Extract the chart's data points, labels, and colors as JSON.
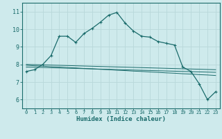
{
  "xlabel": "Humidex (Indice chaleur)",
  "background_color": "#ceeaec",
  "grid_color": "#b8d8da",
  "line_color": "#1a6b6b",
  "xlim": [
    -0.5,
    23.5
  ],
  "ylim": [
    5.5,
    11.5
  ],
  "xticks": [
    0,
    1,
    2,
    3,
    4,
    5,
    6,
    7,
    8,
    9,
    10,
    11,
    12,
    13,
    14,
    15,
    16,
    17,
    18,
    19,
    20,
    21,
    22,
    23
  ],
  "yticks": [
    6,
    7,
    8,
    9,
    10,
    11
  ],
  "curve1_x": [
    0,
    1,
    2,
    3,
    4,
    5,
    6,
    7,
    8,
    9,
    10,
    11,
    12,
    13,
    14,
    15,
    16,
    17,
    18,
    19,
    20,
    21,
    22,
    23
  ],
  "curve1_y": [
    7.6,
    7.7,
    8.0,
    8.5,
    9.6,
    9.6,
    9.25,
    9.75,
    10.05,
    10.4,
    10.8,
    10.95,
    10.35,
    9.9,
    9.6,
    9.55,
    9.3,
    9.2,
    9.1,
    7.85,
    7.6,
    6.9,
    6.0,
    6.45
  ],
  "curve2_x": [
    0,
    1,
    2,
    3,
    4,
    5,
    6,
    7,
    8,
    9,
    10,
    11,
    12,
    13,
    14,
    15,
    16,
    17,
    18,
    19,
    20,
    21,
    22,
    23
  ],
  "curve2_y": [
    7.95,
    7.92,
    7.9,
    7.87,
    7.85,
    7.82,
    7.8,
    7.77,
    7.75,
    7.72,
    7.7,
    7.67,
    7.65,
    7.62,
    7.6,
    7.57,
    7.55,
    7.52,
    7.5,
    7.47,
    7.45,
    7.42,
    7.4,
    7.37
  ],
  "curve3_x": [
    0,
    23
  ],
  "curve3_y": [
    8.0,
    7.7
  ],
  "curve4_x": [
    0,
    23
  ],
  "curve4_y": [
    7.85,
    7.55
  ]
}
